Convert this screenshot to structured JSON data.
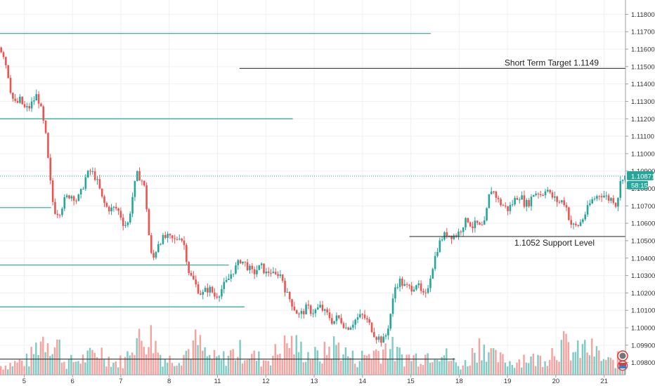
{
  "chart_data": {
    "type": "candlestick",
    "title": "",
    "xlabel": "",
    "ylabel": "",
    "ylim": [
      1.0973,
      1.1185
    ],
    "y_ticks": [
      "1.11800",
      "1.11700",
      "1.11600",
      "1.11500",
      "1.11400",
      "1.11300",
      "1.11200",
      "1.11100",
      "1.11000",
      "1.10900",
      "1.10800",
      "1.10700",
      "1.10600",
      "1.10500",
      "1.10400",
      "1.10300",
      "1.10200",
      "1.10100",
      "1.10000",
      "1.09900",
      "1.09800"
    ],
    "x_ticks": [
      "5",
      "6",
      "7",
      "8",
      "11",
      "12",
      "13",
      "14",
      "15",
      "18",
      "19",
      "20",
      "21"
    ],
    "x_tick_slots": [
      34,
      102,
      170,
      238,
      306,
      374,
      442,
      510,
      578,
      646,
      714,
      782,
      850
    ],
    "slot_count": 880,
    "current_price": "1.10871",
    "countdown": "58:15",
    "colors": {
      "up": "#26a69a",
      "down": "#ef5350",
      "up_vol": "#80cbc4",
      "down_vol": "#f5a3a0",
      "level_line": "#26a69a",
      "annotation_line": "#222222"
    },
    "annotations": [
      {
        "label": "Short Term Target 1.1149",
        "value": 1.1149,
        "x_start_slot": 337,
        "x_end_slot": 890
      },
      {
        "label": "1.1052 Support Level",
        "value": 1.10524,
        "x_start_slot": 576,
        "x_end_slot": 890
      }
    ],
    "horizontal_levels": [
      {
        "value": 1.1169,
        "x_start_slot": 0,
        "x_end_slot": 606
      },
      {
        "value": 1.112,
        "x_start_slot": 0,
        "x_end_slot": 412
      },
      {
        "value": 1.1069,
        "x_start_slot": 0,
        "x_end_slot": 72
      },
      {
        "value": 1.1036,
        "x_start_slot": 0,
        "x_end_slot": 322
      },
      {
        "value": 1.1012,
        "x_start_slot": 0,
        "x_end_slot": 344
      },
      {
        "value": 1.0982,
        "x_start_slot": 0,
        "x_end_slot": 640
      }
    ],
    "price_keys": [
      [
        0,
        1.1161
      ],
      [
        6,
        1.1158
      ],
      [
        12,
        1.1148
      ],
      [
        18,
        1.1133
      ],
      [
        24,
        1.1128
      ],
      [
        30,
        1.1131
      ],
      [
        36,
        1.1126
      ],
      [
        42,
        1.1126
      ],
      [
        48,
        1.113
      ],
      [
        54,
        1.1134
      ],
      [
        60,
        1.1124
      ],
      [
        66,
        1.111
      ],
      [
        72,
        1.1085
      ],
      [
        76,
        1.1072
      ],
      [
        80,
        1.1066
      ],
      [
        86,
        1.1067
      ],
      [
        92,
        1.1073
      ],
      [
        98,
        1.1076
      ],
      [
        104,
        1.1076
      ],
      [
        110,
        1.1073
      ],
      [
        116,
        1.1078
      ],
      [
        122,
        1.1086
      ],
      [
        128,
        1.109
      ],
      [
        134,
        1.1088
      ],
      [
        140,
        1.1082
      ],
      [
        146,
        1.1073
      ],
      [
        152,
        1.1069
      ],
      [
        158,
        1.1068
      ],
      [
        164,
        1.1069
      ],
      [
        170,
        1.1066
      ],
      [
        176,
        1.1059
      ],
      [
        182,
        1.106
      ],
      [
        188,
        1.1075
      ],
      [
        194,
        1.1088
      ],
      [
        200,
        1.1086
      ],
      [
        206,
        1.1079
      ],
      [
        210,
        1.1058
      ],
      [
        214,
        1.1042
      ],
      [
        218,
        1.104
      ],
      [
        224,
        1.1049
      ],
      [
        230,
        1.1051
      ],
      [
        236,
        1.1052
      ],
      [
        242,
        1.1051
      ],
      [
        248,
        1.105
      ],
      [
        254,
        1.1053
      ],
      [
        260,
        1.1049
      ],
      [
        264,
        1.104
      ],
      [
        268,
        1.1031
      ],
      [
        274,
        1.1027
      ],
      [
        280,
        1.1022
      ],
      [
        286,
        1.1019
      ],
      [
        292,
        1.1022
      ],
      [
        298,
        1.1022
      ],
      [
        304,
        1.1018
      ],
      [
        310,
        1.102
      ],
      [
        316,
        1.1024
      ],
      [
        322,
        1.1027
      ],
      [
        328,
        1.1032
      ],
      [
        334,
        1.1035
      ],
      [
        340,
        1.1039
      ],
      [
        346,
        1.1037
      ],
      [
        352,
        1.1034
      ],
      [
        358,
        1.1031
      ],
      [
        364,
        1.1034
      ],
      [
        370,
        1.1035
      ],
      [
        376,
        1.1031
      ],
      [
        382,
        1.1033
      ],
      [
        388,
        1.1029
      ],
      [
        394,
        1.1032
      ],
      [
        400,
        1.1027
      ],
      [
        404,
        1.102
      ],
      [
        410,
        1.1016
      ],
      [
        416,
        1.1011
      ],
      [
        422,
        1.1007
      ],
      [
        428,
        1.1009
      ],
      [
        434,
        1.1012
      ],
      [
        440,
        1.1009
      ],
      [
        446,
        1.101
      ],
      [
        452,
        1.1012
      ],
      [
        458,
        1.1009
      ],
      [
        464,
        1.1007
      ],
      [
        470,
        1.1003
      ],
      [
        476,
        1.1006
      ],
      [
        482,
        1.1004
      ],
      [
        488,
        1.1
      ],
      [
        494,
        1.1001
      ],
      [
        500,
        1.1004
      ],
      [
        506,
        1.1006
      ],
      [
        512,
        1.1007
      ],
      [
        518,
        1.1004
      ],
      [
        524,
        1.1
      ],
      [
        530,
        1.0995
      ],
      [
        536,
        1.0994
      ],
      [
        540,
        1.0992
      ],
      [
        546,
        1.0997
      ],
      [
        552,
        1.101
      ],
      [
        558,
        1.1024
      ],
      [
        564,
        1.1027
      ],
      [
        570,
        1.1024
      ],
      [
        576,
        1.1023
      ],
      [
        582,
        1.1023
      ],
      [
        588,
        1.1026
      ],
      [
        594,
        1.102
      ],
      [
        600,
        1.1017
      ],
      [
        606,
        1.1028
      ],
      [
        612,
        1.1038
      ],
      [
        618,
        1.1047
      ],
      [
        624,
        1.1052
      ],
      [
        630,
        1.1054
      ],
      [
        636,
        1.1053
      ],
      [
        642,
        1.1053
      ],
      [
        648,
        1.1055
      ],
      [
        654,
        1.106
      ],
      [
        660,
        1.1062
      ],
      [
        666,
        1.1058
      ],
      [
        672,
        1.106
      ],
      [
        678,
        1.1057
      ],
      [
        684,
        1.106
      ],
      [
        688,
        1.1072
      ],
      [
        692,
        1.108
      ],
      [
        698,
        1.1077
      ],
      [
        704,
        1.1072
      ],
      [
        710,
        1.107
      ],
      [
        716,
        1.1068
      ],
      [
        722,
        1.1071
      ],
      [
        728,
        1.1075
      ],
      [
        734,
        1.1076
      ],
      [
        740,
        1.1071
      ],
      [
        746,
        1.1072
      ],
      [
        752,
        1.1077
      ],
      [
        758,
        1.1078
      ],
      [
        764,
        1.1076
      ],
      [
        770,
        1.1081
      ],
      [
        776,
        1.1076
      ],
      [
        782,
        1.1074
      ],
      [
        788,
        1.1072
      ],
      [
        794,
        1.1073
      ],
      [
        798,
        1.107
      ],
      [
        804,
        1.106
      ],
      [
        810,
        1.1058
      ],
      [
        816,
        1.1059
      ],
      [
        822,
        1.1063
      ],
      [
        828,
        1.1068
      ],
      [
        834,
        1.1073
      ],
      [
        840,
        1.1075
      ],
      [
        846,
        1.1077
      ],
      [
        852,
        1.1076
      ],
      [
        858,
        1.1074
      ],
      [
        864,
        1.1074
      ],
      [
        868,
        1.1071
      ],
      [
        872,
        1.1077
      ],
      [
        876,
        1.1087
      ]
    ],
    "volume_keys": [
      [
        0,
        0.15
      ],
      [
        20,
        0.2
      ],
      [
        40,
        0.25
      ],
      [
        56,
        0.6
      ],
      [
        68,
        0.65
      ],
      [
        74,
        0.45
      ],
      [
        80,
        0.55
      ],
      [
        90,
        0.2
      ],
      [
        110,
        0.25
      ],
      [
        124,
        0.3
      ],
      [
        140,
        0.4
      ],
      [
        150,
        0.3
      ],
      [
        160,
        0.2
      ],
      [
        176,
        0.25
      ],
      [
        186,
        0.65
      ],
      [
        196,
        0.55
      ],
      [
        206,
        0.7
      ],
      [
        214,
        0.6
      ],
      [
        224,
        0.35
      ],
      [
        234,
        0.25
      ],
      [
        250,
        0.3
      ],
      [
        262,
        0.4
      ],
      [
        276,
        0.55
      ],
      [
        290,
        0.3
      ],
      [
        310,
        0.25
      ],
      [
        322,
        0.35
      ],
      [
        340,
        0.4
      ],
      [
        356,
        0.3
      ],
      [
        370,
        0.25
      ],
      [
        392,
        0.4
      ],
      [
        406,
        0.55
      ],
      [
        418,
        0.45
      ],
      [
        432,
        0.35
      ],
      [
        450,
        0.3
      ],
      [
        462,
        0.45
      ],
      [
        474,
        0.5
      ],
      [
        486,
        0.35
      ],
      [
        500,
        0.25
      ],
      [
        516,
        0.35
      ],
      [
        530,
        0.4
      ],
      [
        546,
        0.5
      ],
      [
        556,
        0.35
      ],
      [
        570,
        0.3
      ],
      [
        584,
        0.3
      ],
      [
        600,
        0.35
      ],
      [
        614,
        0.45
      ],
      [
        628,
        0.3
      ],
      [
        644,
        0.15
      ],
      [
        656,
        0.2
      ],
      [
        668,
        0.45
      ],
      [
        680,
        0.55
      ],
      [
        692,
        0.3
      ],
      [
        706,
        0.25
      ],
      [
        720,
        0.2
      ],
      [
        736,
        0.3
      ],
      [
        752,
        0.25
      ],
      [
        766,
        0.3
      ],
      [
        780,
        0.45
      ],
      [
        794,
        0.5
      ],
      [
        808,
        0.35
      ],
      [
        820,
        0.45
      ],
      [
        834,
        0.4
      ],
      [
        848,
        0.25
      ],
      [
        860,
        0.2
      ],
      [
        874,
        0.3
      ],
      [
        880,
        0.2
      ]
    ]
  }
}
